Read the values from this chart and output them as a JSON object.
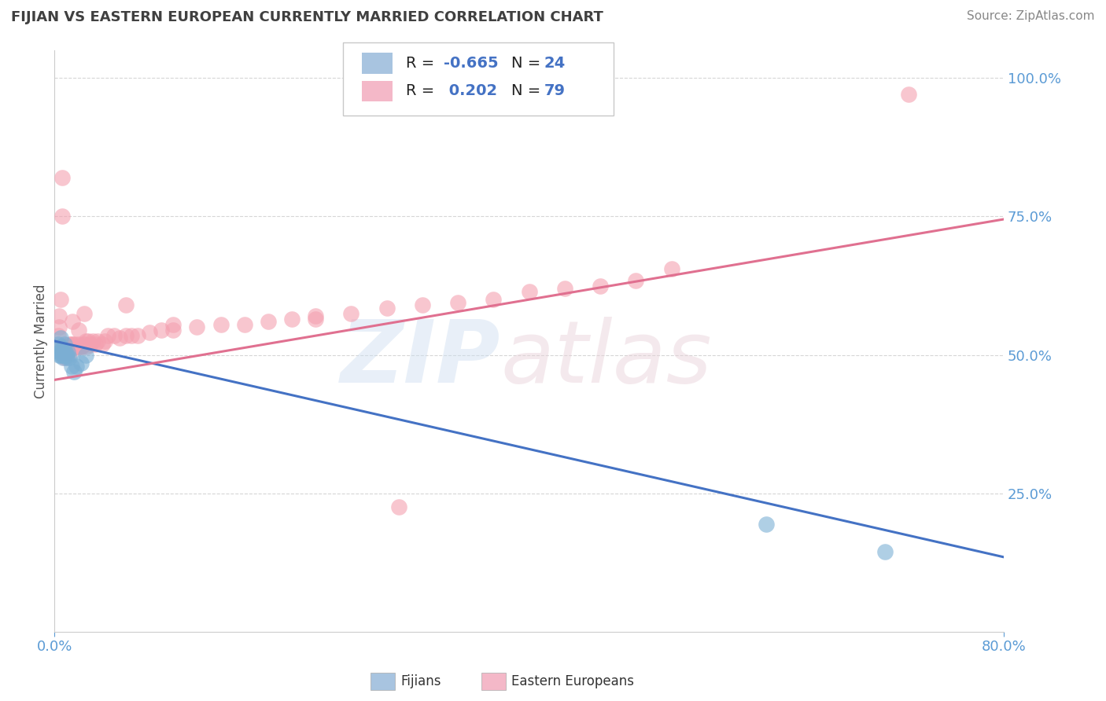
{
  "title": "FIJIAN VS EASTERN EUROPEAN CURRENTLY MARRIED CORRELATION CHART",
  "source": "Source: ZipAtlas.com",
  "ylabel": "Currently Married",
  "fijian_color": "#7bafd4",
  "eastern_color": "#f4a0b0",
  "fijian_legend_color": "#a8c4e0",
  "eastern_legend_color": "#f4b8c8",
  "line_blue": "#4472c4",
  "line_pink": "#e07090",
  "fijian_r": -0.665,
  "fijian_n": 24,
  "eastern_r": 0.202,
  "eastern_n": 79,
  "fijian_scatter_x": [
    0.003,
    0.004,
    0.004,
    0.005,
    0.005,
    0.005,
    0.006,
    0.006,
    0.007,
    0.007,
    0.008,
    0.008,
    0.009,
    0.01,
    0.01,
    0.011,
    0.012,
    0.014,
    0.016,
    0.018,
    0.022,
    0.026,
    0.6,
    0.7
  ],
  "fijian_scatter_y": [
    0.52,
    0.5,
    0.505,
    0.515,
    0.53,
    0.5,
    0.505,
    0.51,
    0.495,
    0.5,
    0.5,
    0.52,
    0.505,
    0.5,
    0.495,
    0.505,
    0.495,
    0.48,
    0.47,
    0.48,
    0.485,
    0.5,
    0.195,
    0.145
  ],
  "eastern_scatter_x": [
    0.003,
    0.004,
    0.004,
    0.005,
    0.005,
    0.006,
    0.006,
    0.007,
    0.007,
    0.008,
    0.008,
    0.008,
    0.009,
    0.009,
    0.01,
    0.01,
    0.011,
    0.011,
    0.012,
    0.012,
    0.013,
    0.013,
    0.014,
    0.015,
    0.015,
    0.016,
    0.016,
    0.017,
    0.018,
    0.018,
    0.019,
    0.02,
    0.021,
    0.022,
    0.023,
    0.024,
    0.025,
    0.026,
    0.027,
    0.028,
    0.03,
    0.032,
    0.034,
    0.036,
    0.04,
    0.042,
    0.045,
    0.05,
    0.055,
    0.06,
    0.065,
    0.07,
    0.08,
    0.09,
    0.1,
    0.12,
    0.14,
    0.16,
    0.18,
    0.2,
    0.22,
    0.25,
    0.28,
    0.31,
    0.34,
    0.37,
    0.4,
    0.43,
    0.46,
    0.49,
    0.52,
    0.015,
    0.02,
    0.025,
    0.06,
    0.1,
    0.22,
    0.72,
    0.29
  ],
  "eastern_scatter_y": [
    0.535,
    0.57,
    0.55,
    0.6,
    0.515,
    0.82,
    0.75,
    0.505,
    0.515,
    0.505,
    0.495,
    0.515,
    0.5,
    0.515,
    0.505,
    0.515,
    0.51,
    0.505,
    0.515,
    0.52,
    0.505,
    0.515,
    0.52,
    0.515,
    0.52,
    0.515,
    0.515,
    0.52,
    0.515,
    0.515,
    0.515,
    0.52,
    0.515,
    0.515,
    0.515,
    0.52,
    0.52,
    0.525,
    0.515,
    0.525,
    0.52,
    0.525,
    0.52,
    0.525,
    0.52,
    0.525,
    0.535,
    0.535,
    0.53,
    0.535,
    0.535,
    0.535,
    0.54,
    0.545,
    0.545,
    0.55,
    0.555,
    0.555,
    0.56,
    0.565,
    0.57,
    0.575,
    0.585,
    0.59,
    0.595,
    0.6,
    0.615,
    0.62,
    0.625,
    0.635,
    0.655,
    0.56,
    0.545,
    0.575,
    0.59,
    0.555,
    0.565,
    0.97,
    0.225
  ],
  "xmin": 0.0,
  "xmax": 0.8,
  "ymin": 0.0,
  "ymax": 1.05,
  "fij_line_x0": 0.0,
  "fij_line_y0": 0.525,
  "fij_line_x1": 0.8,
  "fij_line_y1": 0.135,
  "eas_line_x0": 0.0,
  "eas_line_y0": 0.455,
  "eas_line_x1": 0.8,
  "eas_line_y1": 0.745,
  "grid_color": "#cccccc",
  "background_color": "#ffffff",
  "title_color": "#404040",
  "axis_label_color": "#5b9bd5",
  "source_color": "#888888",
  "yticks": [
    0.25,
    0.5,
    0.75,
    1.0
  ],
  "ytick_labels": [
    "25.0%",
    "50.0%",
    "75.0%",
    "100.0%"
  ]
}
